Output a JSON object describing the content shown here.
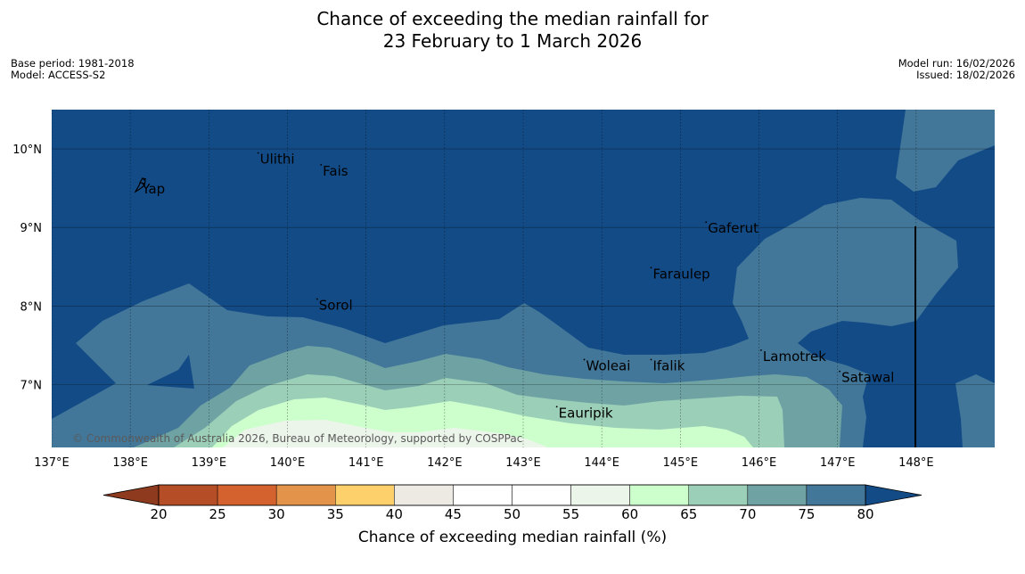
{
  "title": {
    "line1": "Chance of exceeding the median rainfall for",
    "line2": "23 February to 1 March 2026"
  },
  "meta": {
    "base_period": "Base period: 1981-2018",
    "model": "Model: ACCESS-S2",
    "model_run": "Model run: 16/02/2026",
    "issued": "Issued: 18/02/2026"
  },
  "map": {
    "lon_range": [
      137,
      149
    ],
    "lat_range": [
      6.2,
      10.5
    ],
    "lon_ticks": [
      {
        "value": 137,
        "label": "137°E"
      },
      {
        "value": 138,
        "label": "138°E"
      },
      {
        "value": 139,
        "label": "139°E"
      },
      {
        "value": 140,
        "label": "140°E"
      },
      {
        "value": 141,
        "label": "141°E"
      },
      {
        "value": 142,
        "label": "142°E"
      },
      {
        "value": 143,
        "label": "143°E"
      },
      {
        "value": 144,
        "label": "144°E"
      },
      {
        "value": 145,
        "label": "145°E"
      },
      {
        "value": 146,
        "label": "146°E"
      },
      {
        "value": 147,
        "label": "147°E"
      },
      {
        "value": 148,
        "label": "148°E"
      }
    ],
    "lat_ticks": [
      {
        "value": 10,
        "label": "10°N"
      },
      {
        "value": 9,
        "label": "9°N"
      },
      {
        "value": 8,
        "label": "8°N"
      },
      {
        "value": 7,
        "label": "7°N"
      }
    ],
    "places": [
      {
        "name": "Ulithi",
        "lon": 139.65,
        "lat": 9.88
      },
      {
        "name": "Fais",
        "lon": 140.45,
        "lat": 9.73
      },
      {
        "name": "Yap",
        "lon": 138.15,
        "lat": 9.5
      },
      {
        "name": "Gaferut",
        "lon": 145.35,
        "lat": 9.0
      },
      {
        "name": "Faraulep",
        "lon": 144.65,
        "lat": 8.42
      },
      {
        "name": "Sorol",
        "lon": 140.4,
        "lat": 8.02
      },
      {
        "name": "Lamotrek",
        "lon": 146.05,
        "lat": 7.37
      },
      {
        "name": "Woleai",
        "lon": 143.8,
        "lat": 7.25
      },
      {
        "name": "Ifalik",
        "lon": 144.65,
        "lat": 7.25
      },
      {
        "name": "Satawal",
        "lon": 147.05,
        "lat": 7.1
      },
      {
        "name": "Eauripik",
        "lon": 143.45,
        "lat": 6.65
      }
    ],
    "copyright": "© Commonwealth of Australia 2026, Bureau of Meteorology, supported by COSPPac"
  },
  "colorbar": {
    "title": "Chance of exceeding median rainfall (%)",
    "boundaries": [
      20,
      25,
      30,
      35,
      40,
      45,
      50,
      55,
      60,
      65,
      70,
      75,
      80
    ],
    "colors": [
      "#b54e26",
      "#d4622f",
      "#e3944a",
      "#fdd06b",
      "#ede9e3",
      "#ffffff",
      "#ffffff",
      "#ecf5ea",
      "#ccffcc",
      "#9ccfb8",
      "#6fa3a3",
      "#42779a"
    ],
    "under_color": "#8e3a1f",
    "over_color": "#134b87"
  },
  "colors": {
    "band_over80": "#134b87",
    "band_75_80": "#42779a",
    "band_70_75": "#6fa3a3",
    "band_65_70": "#9ccfb8",
    "band_60_65": "#ccffcc",
    "band_55_60": "#ecf5ea"
  }
}
